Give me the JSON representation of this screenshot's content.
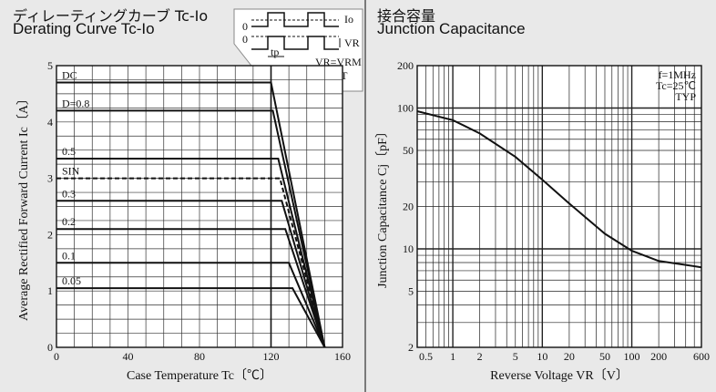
{
  "left": {
    "title_jp": "ディレーティングカーブ Tc-Io",
    "title_en": "Derating Curve Tc-Io",
    "inset": {
      "io_label": "Io",
      "vr_label": "VR",
      "zero_top": "0",
      "zero_bottom": "0",
      "tp_label": "tp",
      "t_label": "T",
      "eq1": "VR=VRM",
      "eq2": "D=tp/T"
    }
  },
  "right": {
    "title_jp": "接合容量",
    "title_en": "Junction Capacitance",
    "conditions": [
      "f=1MHz",
      "Tc=25℃",
      "TYP"
    ]
  },
  "chart_data": [
    {
      "type": "line",
      "title": "Derating Curve Tc-Io",
      "xlabel": "Case Temperature Tc〔℃〕",
      "ylabel": "Average Rectified Forward Current Ic〔A〕",
      "xlim": [
        0,
        160
      ],
      "ylim": [
        0,
        5
      ],
      "xticks": [
        "0",
        "40",
        "80",
        "120",
        "160"
      ],
      "yticks": [
        "0",
        "1",
        "2",
        "3",
        "4",
        "5"
      ],
      "grid": true,
      "series": [
        {
          "name": "DC",
          "dashed": false,
          "points": [
            [
              0,
              4.7
            ],
            [
              120,
              4.7
            ],
            [
              150,
              0
            ]
          ]
        },
        {
          "name": "D=0.8",
          "dashed": false,
          "points": [
            [
              0,
              4.2
            ],
            [
              121,
              4.2
            ],
            [
              150,
              0
            ]
          ]
        },
        {
          "name": "0.5",
          "dashed": false,
          "points": [
            [
              0,
              3.35
            ],
            [
              124,
              3.35
            ],
            [
              150,
              0
            ]
          ]
        },
        {
          "name": "SIN",
          "dashed": true,
          "points": [
            [
              0,
              3.0
            ],
            [
              125,
              3.0
            ],
            [
              150,
              0
            ]
          ]
        },
        {
          "name": "0.3",
          "dashed": false,
          "points": [
            [
              0,
              2.6
            ],
            [
              126,
              2.6
            ],
            [
              150,
              0
            ]
          ]
        },
        {
          "name": "0.2",
          "dashed": false,
          "points": [
            [
              0,
              2.1
            ],
            [
              128,
              2.1
            ],
            [
              150,
              0
            ]
          ]
        },
        {
          "name": "0.1",
          "dashed": false,
          "points": [
            [
              0,
              1.5
            ],
            [
              130,
              1.5
            ],
            [
              150,
              0
            ]
          ]
        },
        {
          "name": "0.05",
          "dashed": false,
          "points": [
            [
              0,
              1.05
            ],
            [
              132,
              1.05
            ],
            [
              150,
              0
            ]
          ]
        }
      ]
    },
    {
      "type": "line",
      "title": "Junction Capacitance",
      "xlabel": "Reverse Voltage VR〔V〕",
      "ylabel": "Junction Capacitance Cj〔pF〕",
      "xscale": "log",
      "yscale": "log",
      "xlim": [
        0.4,
        600
      ],
      "ylim": [
        2,
        200
      ],
      "xticks": [
        0.5,
        1,
        2,
        5,
        10,
        20,
        50,
        100,
        200,
        600
      ],
      "yticks": [
        2,
        5,
        10,
        20,
        50,
        100,
        200
      ],
      "grid": true,
      "series": [
        {
          "points": [
            [
              0.4,
              95
            ],
            [
              1,
              82
            ],
            [
              2,
              66
            ],
            [
              5,
              45
            ],
            [
              10,
              31
            ],
            [
              20,
              21
            ],
            [
              50,
              12.8
            ],
            [
              100,
              9.7
            ],
            [
              200,
              8.2
            ],
            [
              600,
              7.4
            ]
          ]
        }
      ]
    }
  ]
}
